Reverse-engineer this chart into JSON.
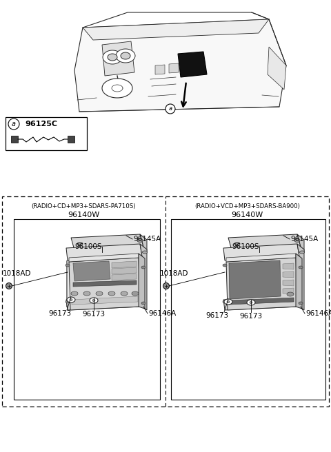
{
  "bg_color": "#ffffff",
  "part_a_number": "96125C",
  "left_section_label": "(RADIO+CD+MP3+SDARS-PA710S)",
  "right_section_label": "(RADIO+VCD+MP3+SDARS-BA900)",
  "left_part_number": "96140W",
  "right_part_number": "96140W",
  "label_96145A": "96145A",
  "label_96100S": "96100S",
  "label_96146A": "96146A",
  "label_96173": "96173",
  "label_1018AD": "1018AD"
}
